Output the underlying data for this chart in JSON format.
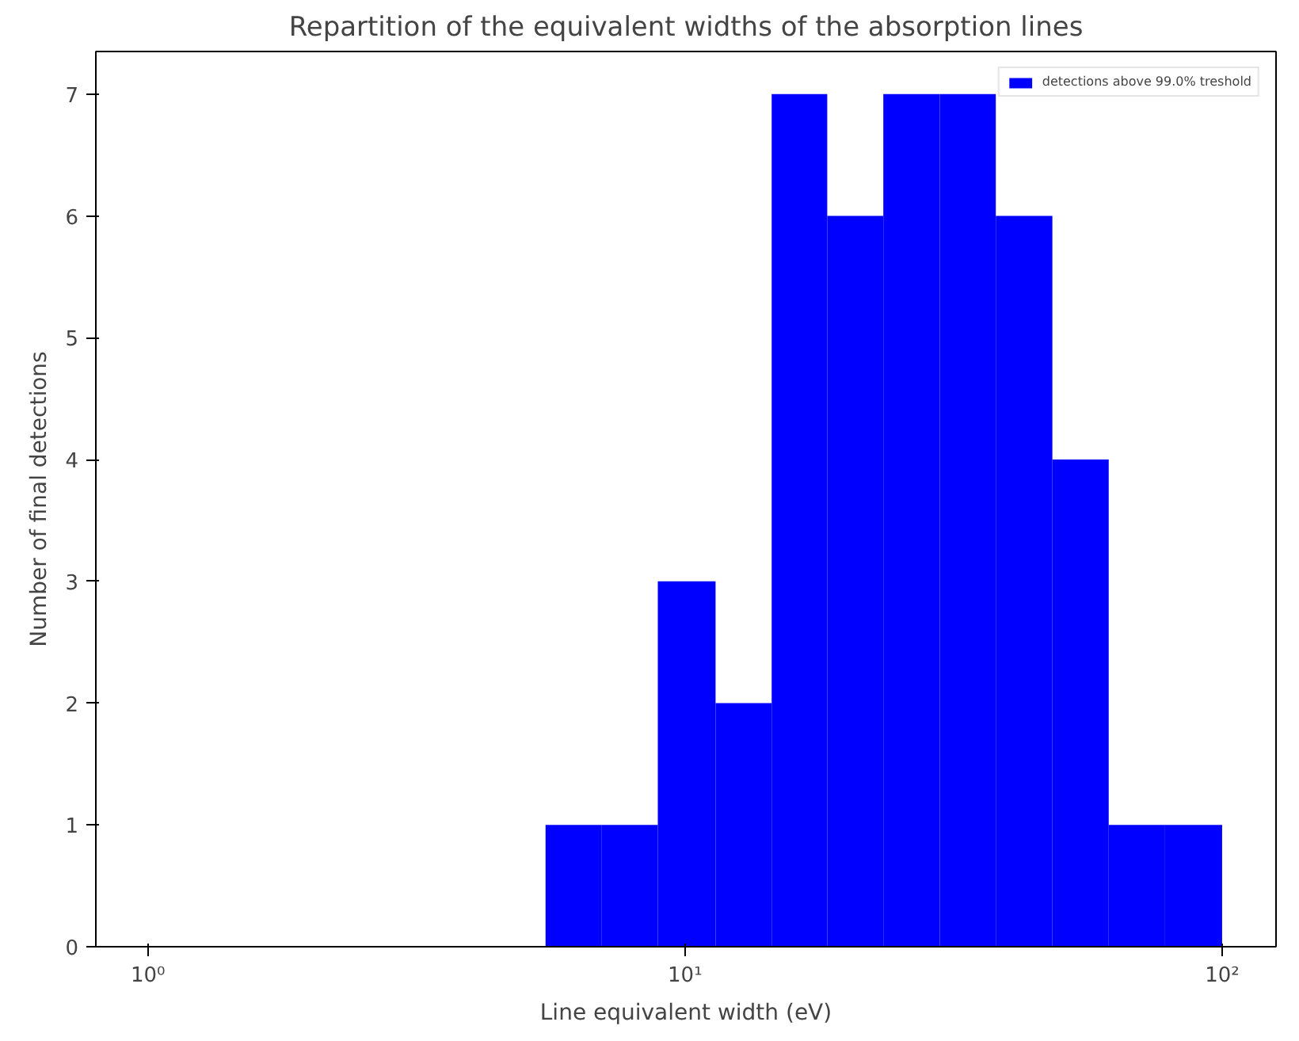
{
  "chart_data": {
    "type": "histogram",
    "title": "Repartition of the equivalent widths of the absorption lines",
    "xlabel": "Line equivalent width (eV)",
    "ylabel": "Number of final detections",
    "bins": [
      5.5,
      7.0,
      8.9,
      11.4,
      14.5,
      18.4,
      23.4,
      29.8,
      37.9,
      48.3,
      61.5,
      78.3,
      100
    ],
    "series": [
      {
        "name": "detections above 99.0% treshold",
        "color": "#0000ff",
        "values": [
          1,
          1,
          3,
          2,
          7,
          6,
          7,
          7,
          6,
          4,
          1,
          1
        ]
      }
    ],
    "log": "x",
    "xlim": [
      0.8,
      126
    ],
    "xticks": [
      {
        "value": 1,
        "label": "10⁰"
      },
      {
        "value": 10,
        "label": "10¹"
      },
      {
        "value": 100,
        "label": "10²"
      }
    ],
    "ylim": [
      0,
      7.35
    ],
    "yticks": [
      0,
      1,
      2,
      3,
      4,
      5,
      6,
      7
    ],
    "grid": false,
    "legend": "top right"
  }
}
